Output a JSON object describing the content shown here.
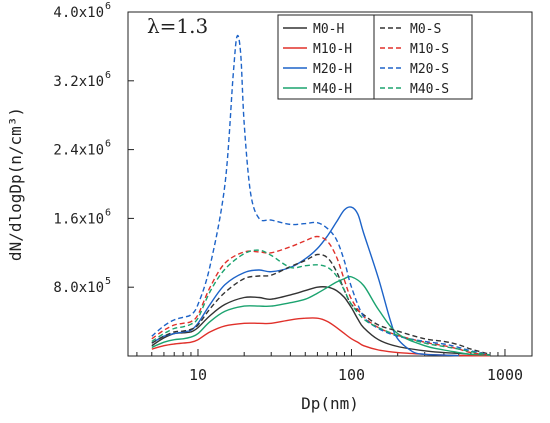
{
  "chart_data": {
    "type": "line",
    "annotation": "λ=1.3",
    "xlabel": "Dp(nm)",
    "ylabel": "dN/dlogDp(n/cm³)",
    "x_scale": "log",
    "xlim": [
      3.5,
      1500
    ],
    "ylim": [
      0,
      4000000
    ],
    "x_ticks": [
      10,
      100,
      1000
    ],
    "x_tick_labels": [
      "10",
      "100",
      "1000"
    ],
    "y_ticks": [
      800000,
      1600000,
      2400000,
      3200000,
      4000000
    ],
    "y_tick_labels": [
      {
        "mant": "8.0x10",
        "exp": "5"
      },
      {
        "mant": "1.6x10",
        "exp": "6"
      },
      {
        "mant": "2.4x10",
        "exp": "6"
      },
      {
        "mant": "3.2x10",
        "exp": "6"
      },
      {
        "mant": "4.0x10",
        "exp": "6"
      }
    ],
    "grid": false,
    "legend_position": "top-right",
    "series": [
      {
        "name": "M0-H",
        "color": "#333333",
        "dash": "solid",
        "x": [
          5,
          6,
          7,
          8,
          9,
          10,
          12,
          15,
          20,
          25,
          30,
          40,
          50,
          60,
          70,
          80,
          90,
          100,
          110,
          120,
          150,
          200,
          300,
          400,
          500,
          600,
          800
        ],
        "y": [
          120000,
          210000,
          260000,
          270000,
          280000,
          330000,
          470000,
          600000,
          680000,
          680000,
          660000,
          710000,
          760000,
          800000,
          800000,
          760000,
          680000,
          560000,
          430000,
          330000,
          190000,
          110000,
          60000,
          40000,
          30000,
          20000,
          10000
        ]
      },
      {
        "name": "M10-H",
        "color": "#e0302a",
        "dash": "solid",
        "x": [
          5,
          6,
          7,
          8,
          9,
          10,
          12,
          15,
          20,
          25,
          30,
          40,
          50,
          60,
          70,
          80,
          90,
          100,
          110,
          120,
          150,
          200,
          300,
          400,
          500,
          600,
          800
        ],
        "y": [
          80000,
          120000,
          140000,
          150000,
          160000,
          190000,
          280000,
          350000,
          380000,
          380000,
          380000,
          420000,
          440000,
          440000,
          400000,
          330000,
          260000,
          200000,
          160000,
          120000,
          70000,
          40000,
          20000,
          10000,
          5000,
          3000,
          2000
        ]
      },
      {
        "name": "M20-H",
        "color": "#1d63c8",
        "dash": "solid",
        "x": [
          5,
          6,
          7,
          8,
          9,
          10,
          12,
          15,
          20,
          25,
          30,
          40,
          50,
          60,
          70,
          80,
          90,
          100,
          110,
          120,
          150,
          180,
          200,
          250,
          300,
          400,
          500
        ],
        "y": [
          150000,
          230000,
          260000,
          280000,
          300000,
          380000,
          600000,
          830000,
          970000,
          1000000,
          980000,
          1030000,
          1130000,
          1250000,
          1400000,
          1560000,
          1700000,
          1730000,
          1650000,
          1430000,
          900000,
          400000,
          200000,
          50000,
          20000,
          10000,
          5000
        ]
      },
      {
        "name": "M40-H",
        "color": "#1ba36f",
        "dash": "solid",
        "x": [
          5,
          6,
          7,
          8,
          9,
          10,
          12,
          15,
          20,
          25,
          30,
          40,
          50,
          60,
          70,
          80,
          90,
          100,
          120,
          150,
          200,
          300,
          400,
          500,
          600,
          800
        ],
        "y": [
          100000,
          160000,
          190000,
          200000,
          220000,
          260000,
          400000,
          520000,
          580000,
          580000,
          580000,
          620000,
          660000,
          730000,
          800000,
          860000,
          900000,
          920000,
          820000,
          540000,
          260000,
          120000,
          70000,
          40000,
          20000,
          10000
        ]
      },
      {
        "name": "M0-S",
        "color": "#333333",
        "dash": "dashed",
        "x": [
          5,
          6,
          7,
          8,
          9,
          10,
          12,
          15,
          20,
          25,
          30,
          40,
          50,
          60,
          70,
          80,
          90,
          100,
          120,
          150,
          200,
          300,
          400,
          500,
          600,
          800
        ],
        "y": [
          150000,
          230000,
          280000,
          290000,
          310000,
          360000,
          550000,
          740000,
          900000,
          930000,
          940000,
          1040000,
          1110000,
          1180000,
          1140000,
          980000,
          760000,
          600000,
          480000,
          360000,
          290000,
          200000,
          170000,
          130000,
          80000,
          20000
        ]
      },
      {
        "name": "M10-S",
        "color": "#e0302a",
        "dash": "dashed",
        "x": [
          5,
          6,
          7,
          8,
          9,
          10,
          12,
          15,
          20,
          25,
          30,
          40,
          50,
          60,
          70,
          80,
          90,
          100,
          120,
          150,
          200,
          300,
          400,
          500,
          600,
          800
        ],
        "y": [
          200000,
          300000,
          360000,
          380000,
          400000,
          480000,
          800000,
          1080000,
          1210000,
          1210000,
          1200000,
          1270000,
          1340000,
          1390000,
          1330000,
          1150000,
          880000,
          660000,
          460000,
          330000,
          240000,
          160000,
          120000,
          80000,
          40000,
          10000
        ]
      },
      {
        "name": "M20-S",
        "color": "#1d63c8",
        "dash": "dashed",
        "x": [
          5,
          6,
          7,
          8,
          9,
          10,
          12,
          15,
          17,
          18,
          19,
          20,
          22,
          25,
          30,
          40,
          50,
          60,
          70,
          80,
          90,
          100,
          120,
          150,
          200,
          300,
          400,
          500,
          600,
          800
        ],
        "y": [
          230000,
          350000,
          420000,
          450000,
          480000,
          600000,
          1050000,
          2000000,
          3300000,
          3720000,
          3500000,
          2700000,
          1900000,
          1600000,
          1580000,
          1530000,
          1540000,
          1550000,
          1480000,
          1350000,
          1100000,
          800000,
          460000,
          320000,
          230000,
          170000,
          140000,
          100000,
          60000,
          10000
        ]
      },
      {
        "name": "M40-S",
        "color": "#1ba36f",
        "dash": "dashed",
        "x": [
          5,
          6,
          7,
          8,
          9,
          10,
          12,
          15,
          20,
          25,
          30,
          40,
          50,
          60,
          70,
          80,
          90,
          100,
          120,
          150,
          200,
          300,
          400,
          500,
          600,
          800
        ],
        "y": [
          170000,
          260000,
          320000,
          340000,
          370000,
          440000,
          750000,
          1010000,
          1190000,
          1230000,
          1170000,
          1030000,
          1050000,
          1060000,
          1030000,
          930000,
          760000,
          600000,
          430000,
          330000,
          240000,
          150000,
          110000,
          80000,
          50000,
          10000
        ]
      }
    ]
  }
}
